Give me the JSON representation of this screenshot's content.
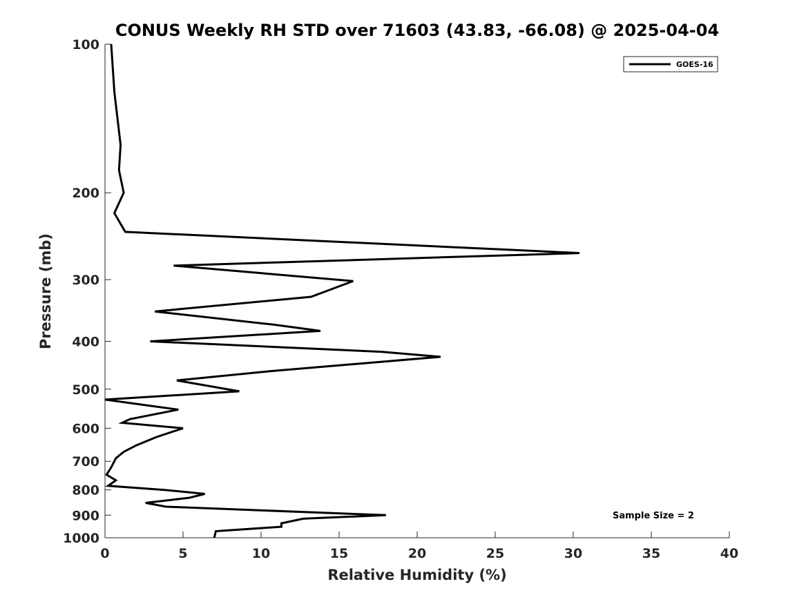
{
  "chart_data": {
    "type": "line",
    "title": "CONUS Weekly RH STD over 71603 (43.83, -66.08) @ 2025-04-04",
    "xlabel": "Relative Humidity (%)",
    "ylabel": "Pressure (mb)",
    "xlim": [
      0,
      40
    ],
    "ylim": [
      100,
      1000
    ],
    "yscale": "log",
    "y_reversed": true,
    "xticks": [
      0,
      5,
      10,
      15,
      20,
      25,
      30,
      35,
      40
    ],
    "yticks": [
      100,
      200,
      300,
      400,
      500,
      600,
      700,
      800,
      900,
      1000
    ],
    "grid": false,
    "legend": {
      "position": "top-right",
      "entries": [
        "GOES-16"
      ]
    },
    "annotation": "Sample Size = 2",
    "series": [
      {
        "name": "GOES-16",
        "color": "#000000",
        "points": [
          [
            0.4,
            100
          ],
          [
            0.6,
            125
          ],
          [
            1.0,
            160
          ],
          [
            0.9,
            180
          ],
          [
            1.2,
            200
          ],
          [
            0.6,
            220
          ],
          [
            1.3,
            240
          ],
          [
            30.4,
            265
          ],
          [
            4.4,
            281
          ],
          [
            15.9,
            302
          ],
          [
            13.2,
            325
          ],
          [
            3.2,
            348
          ],
          [
            10.8,
            370
          ],
          [
            13.8,
            381
          ],
          [
            2.9,
            400
          ],
          [
            17.7,
            420
          ],
          [
            21.5,
            430
          ],
          [
            10.5,
            460
          ],
          [
            4.6,
            480
          ],
          [
            8.6,
            505
          ],
          [
            0.0,
            525
          ],
          [
            4.7,
            550
          ],
          [
            1.6,
            575
          ],
          [
            1.1,
            585
          ],
          [
            5.0,
            600
          ],
          [
            3.3,
            625
          ],
          [
            2.0,
            650
          ],
          [
            1.2,
            670
          ],
          [
            0.7,
            690
          ],
          [
            0.4,
            720
          ],
          [
            0.1,
            745
          ],
          [
            0.7,
            765
          ],
          [
            0.2,
            785
          ],
          [
            3.8,
            800
          ],
          [
            6.4,
            815
          ],
          [
            5.4,
            830
          ],
          [
            2.6,
            850
          ],
          [
            3.9,
            865
          ],
          [
            18.0,
            900
          ],
          [
            12.7,
            915
          ],
          [
            11.3,
            935
          ],
          [
            11.3,
            950
          ],
          [
            7.1,
            970
          ],
          [
            7.0,
            1000
          ]
        ]
      }
    ]
  }
}
